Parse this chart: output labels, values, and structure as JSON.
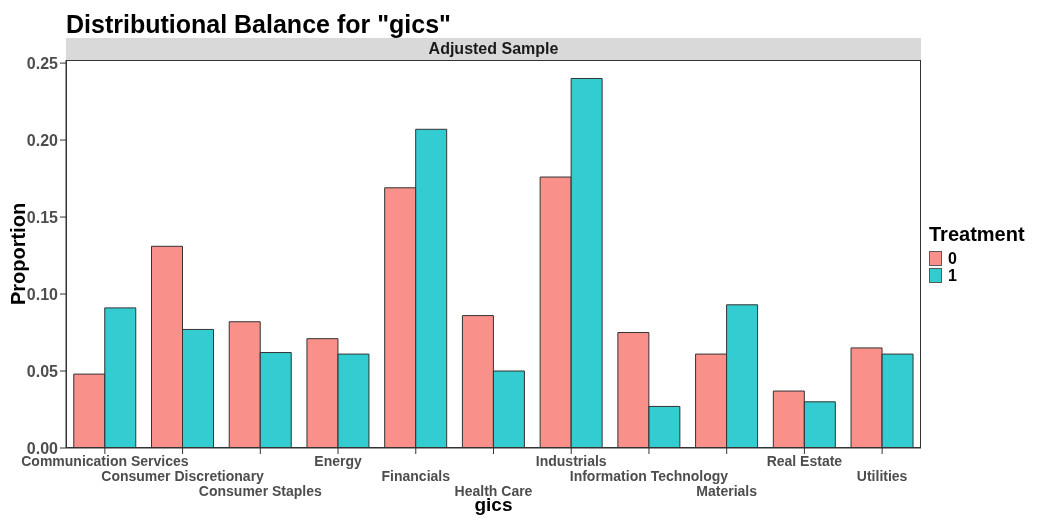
{
  "chart_data": {
    "type": "bar",
    "title": "Distributional Balance for \"gics\"",
    "subtitle": "Adjusted Sample",
    "xlabel": "gics",
    "ylabel": "Proportion",
    "legend_title": "Treatment",
    "legend": "right",
    "categories": [
      "Communication Services",
      "Consumer Discretionary",
      "Consumer Staples",
      "Energy",
      "Financials",
      "Health Care",
      "Industrials",
      "Information Technology",
      "Materials",
      "Real Estate",
      "Utilities"
    ],
    "series": [
      {
        "name": "0",
        "color": "#f8766d",
        "values": [
          0.048,
          0.131,
          0.082,
          0.071,
          0.169,
          0.086,
          0.176,
          0.075,
          0.061,
          0.037,
          0.065
        ]
      },
      {
        "name": "1",
        "color": "#00bfc4",
        "values": [
          0.091,
          0.077,
          0.062,
          0.061,
          0.207,
          0.05,
          0.24,
          0.027,
          0.093,
          0.03,
          0.061
        ]
      }
    ],
    "ylim": [
      0,
      0.252
    ],
    "yticks": [
      {
        "value": 0,
        "label": "0.00"
      },
      {
        "value": 0.05,
        "label": "0.05"
      },
      {
        "value": 0.1,
        "label": "0.10"
      },
      {
        "value": 0.15,
        "label": "0.15"
      },
      {
        "value": 0.2,
        "label": "0.20"
      },
      {
        "value": 0.25,
        "label": "0.25"
      }
    ],
    "grid": false
  }
}
